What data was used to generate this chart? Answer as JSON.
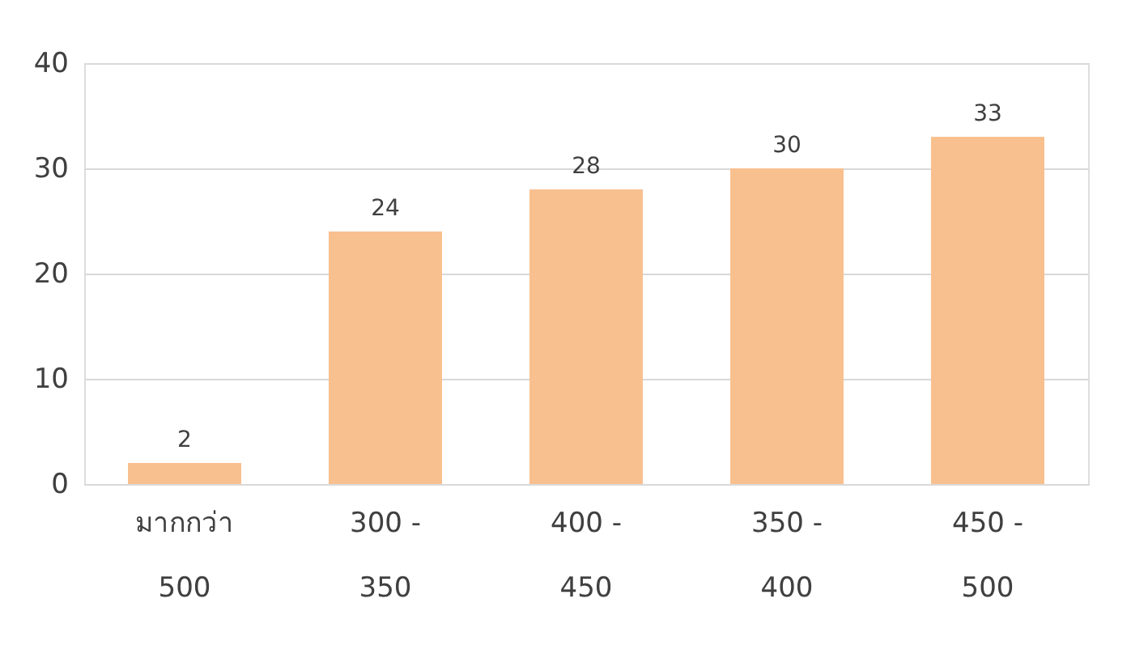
{
  "chart_data": {
    "type": "bar",
    "categories": [
      "มากกว่า 500",
      "300 - 350",
      "400 - 450",
      "350 - 400",
      "450 - 500"
    ],
    "values": [
      2,
      24,
      28,
      30,
      33
    ],
    "color": "#f9c08f",
    "ylim": [
      0,
      40
    ],
    "yticks": [
      0,
      10,
      20,
      30,
      40
    ],
    "grid": "y",
    "data_labels": true
  }
}
